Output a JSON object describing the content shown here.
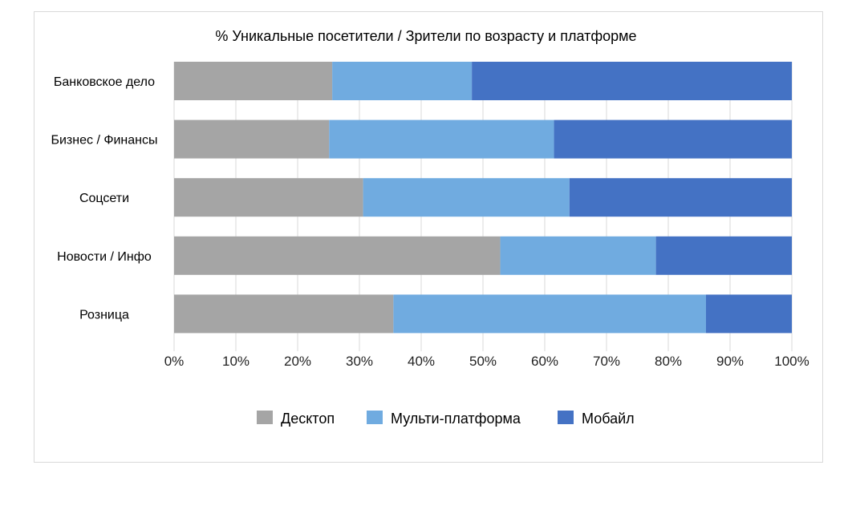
{
  "chart_data": {
    "type": "bar",
    "orientation": "horizontal",
    "stacked": "percent",
    "title": "% Уникальные посетители / Зрители по возрасту и платформе",
    "categories": [
      "Банковское дело",
      "Бизнес / Финансы",
      "Соцсети",
      "Новости / Инфо",
      "Розница"
    ],
    "series": [
      {
        "name": "Десктоп",
        "color": "#a5a5a5",
        "values": [
          25.6,
          25.1,
          30.6,
          52.8,
          35.5
        ]
      },
      {
        "name": "Мульти-платформа",
        "color": "#70abe0",
        "values": [
          22.6,
          36.4,
          33.4,
          25.2,
          50.6
        ]
      },
      {
        "name": "Мобайл",
        "color": "#4472c4",
        "values": [
          51.8,
          38.5,
          36.0,
          22.0,
          13.9
        ]
      }
    ],
    "xlim": [
      0,
      100
    ],
    "xticks": [
      "0%",
      "10%",
      "20%",
      "30%",
      "40%",
      "50%",
      "60%",
      "70%",
      "80%",
      "90%",
      "100%"
    ],
    "grid": true,
    "legend": "bottom"
  }
}
